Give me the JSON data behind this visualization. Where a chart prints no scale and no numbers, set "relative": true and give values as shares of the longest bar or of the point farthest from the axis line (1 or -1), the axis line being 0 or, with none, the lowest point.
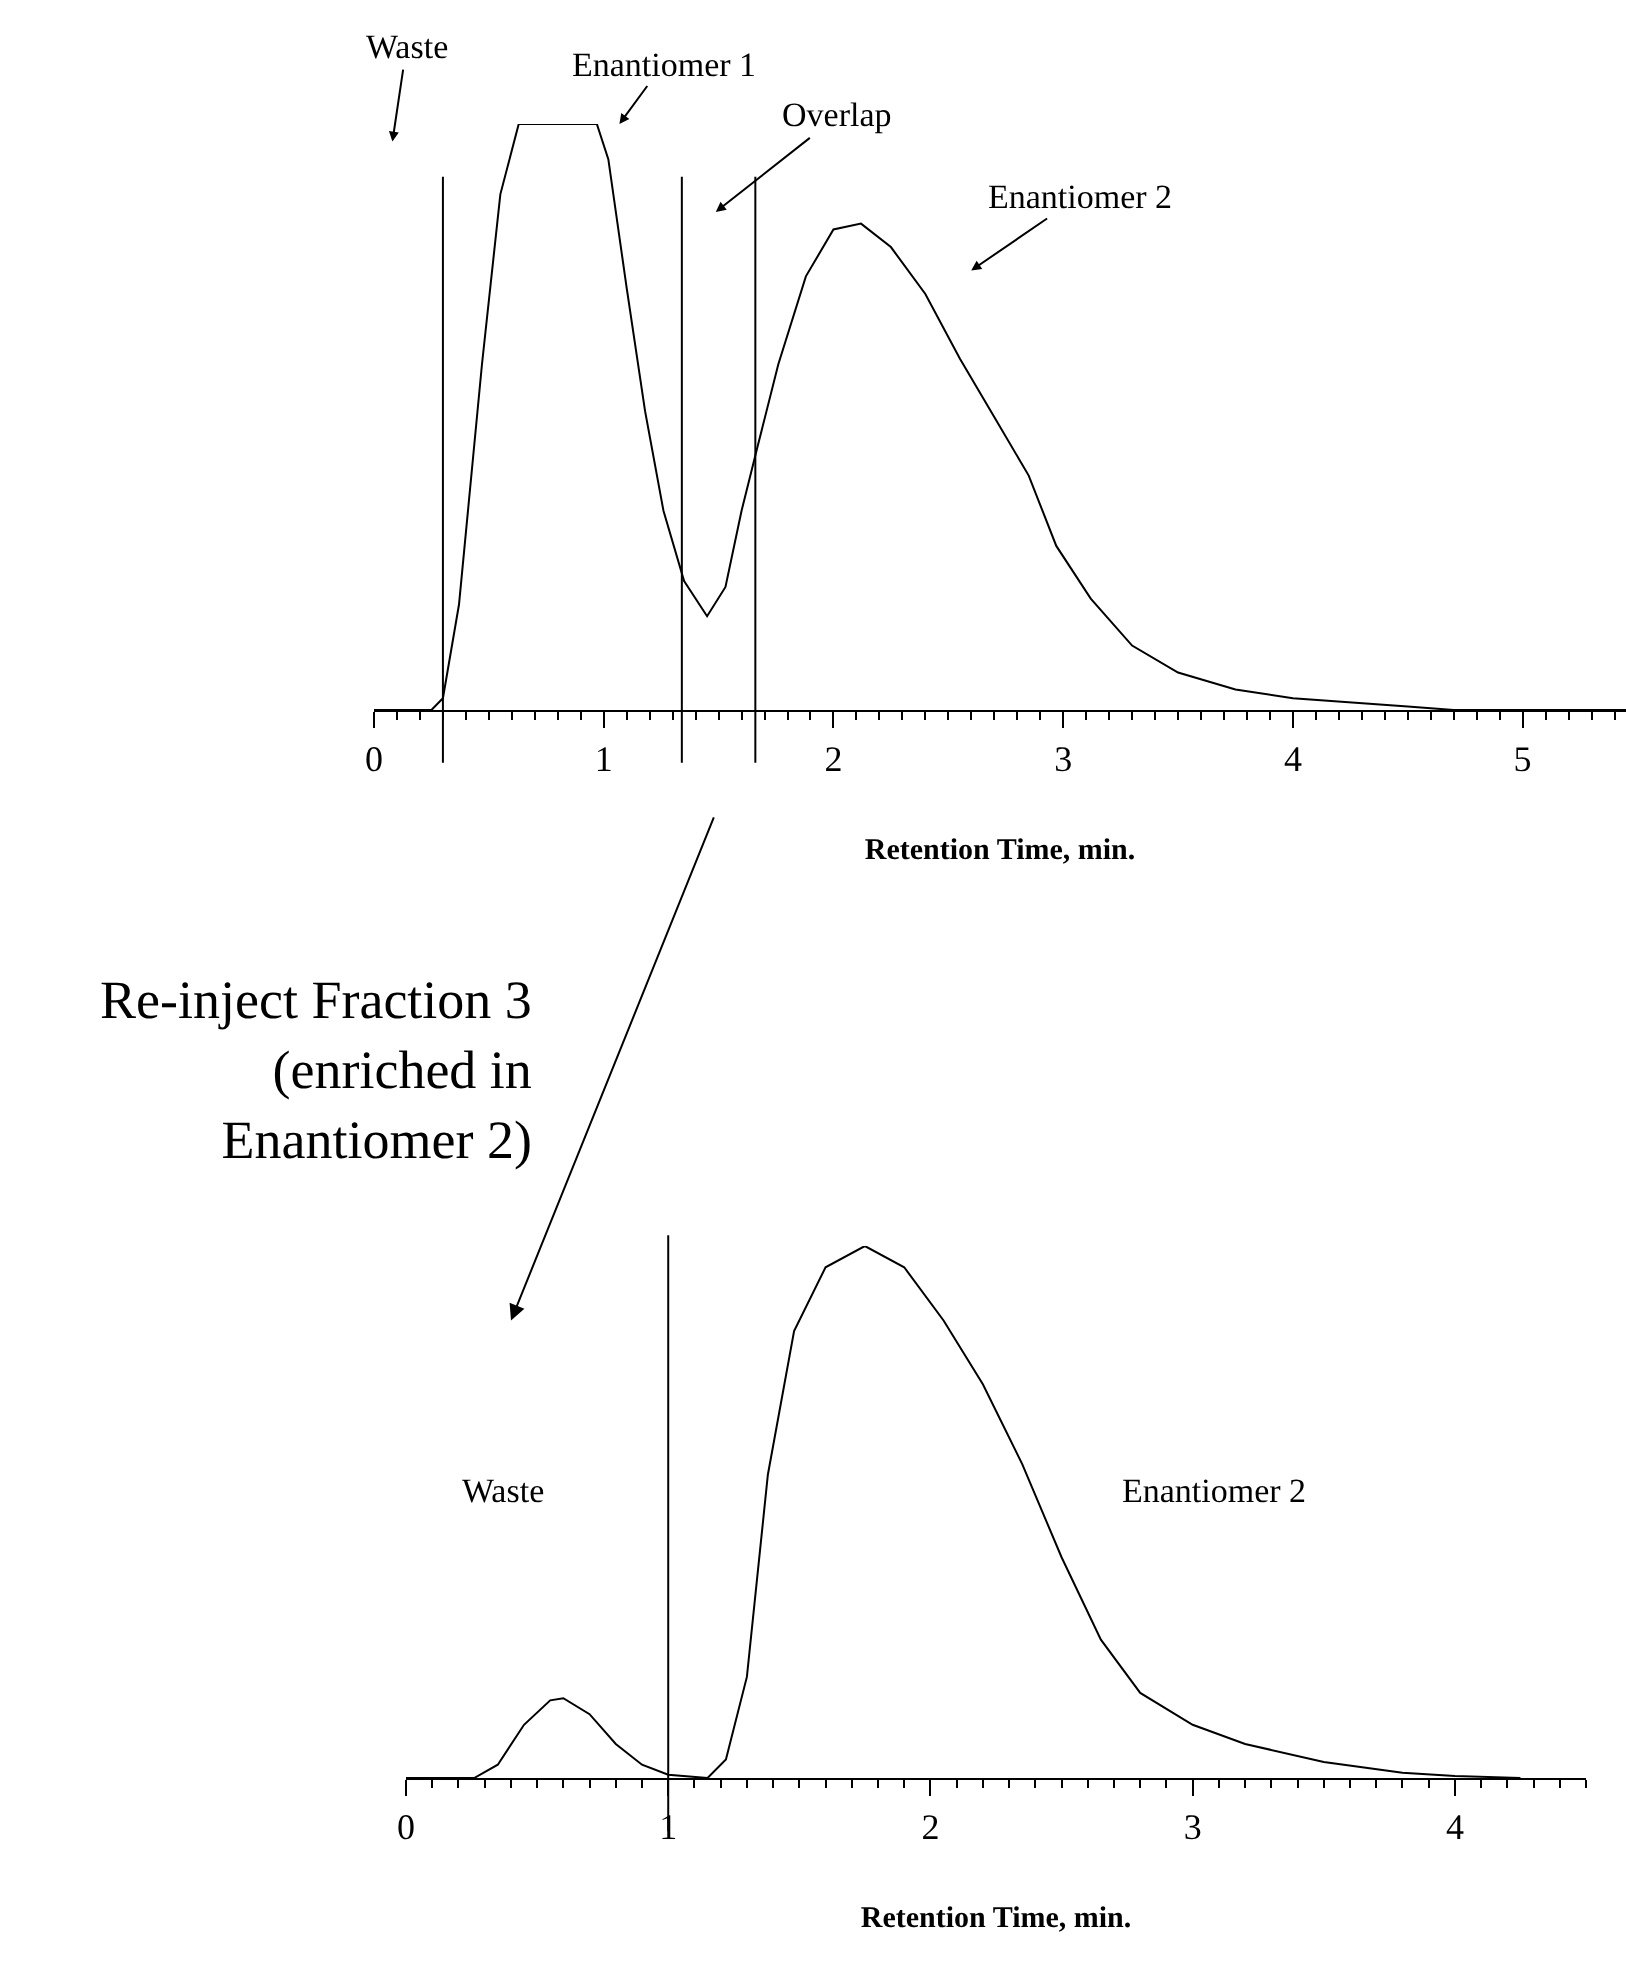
{
  "chart_data": [
    {
      "type": "line",
      "relative": true,
      "xlabel": "Retention Time, min.",
      "xlim": [
        0,
        5.45
      ],
      "xticks": [
        0,
        1,
        2,
        3,
        4,
        5
      ],
      "grid": false,
      "marker": "none",
      "line_style": "solid",
      "series": [
        {
          "color": "#000000",
          "x": [
            0,
            0.25,
            0.3,
            0.37,
            0.47,
            0.55,
            0.63,
            0.97,
            1.02,
            1.1,
            1.18,
            1.26,
            1.35,
            1.45,
            1.53,
            1.6,
            1.67,
            1.76,
            1.88,
            2.0,
            2.12,
            2.25,
            2.4,
            2.55,
            2.7,
            2.85,
            2.97,
            3.12,
            3.3,
            3.5,
            3.75,
            4.0,
            4.5,
            4.7,
            5.45
          ],
          "values": [
            0,
            0,
            0.02,
            0.18,
            0.59,
            0.88,
            1,
            1,
            0.94,
            0.72,
            0.51,
            0.34,
            0.22,
            0.16,
            0.21,
            0.34,
            0.45,
            0.59,
            0.74,
            0.82,
            0.83,
            0.79,
            0.71,
            0.6,
            0.5,
            0.4,
            0.28,
            0.19,
            0.11,
            0.064,
            0.035,
            0.02,
            0.006,
            0,
            0
          ]
        }
      ],
      "ref_lines": [
        {
          "axis": "x",
          "value": 0.3,
          "color": "#000000"
        },
        {
          "axis": "x",
          "value": 1.34,
          "color": "#000000"
        },
        {
          "axis": "x",
          "value": 1.66,
          "color": "#000000"
        }
      ],
      "annotations": [
        "Waste",
        "Enantiomer 1",
        "Overlap",
        "Enantiomer 2"
      ]
    },
    {
      "type": "line",
      "relative": true,
      "xlabel": "Retention Time, min.",
      "xlim": [
        0,
        4.5
      ],
      "xticks": [
        0,
        1,
        2,
        3,
        4
      ],
      "grid": false,
      "marker": "none",
      "line_style": "solid",
      "series": [
        {
          "color": "#000000",
          "x": [
            0,
            0.26,
            0.35,
            0.45,
            0.55,
            0.6,
            0.7,
            0.8,
            0.9,
            1.0,
            1.15,
            1.22,
            1.3,
            1.38,
            1.48,
            1.6,
            1.75,
            1.9,
            2.05,
            2.2,
            2.35,
            2.5,
            2.65,
            2.8,
            3.0,
            3.2,
            3.5,
            3.8,
            4.0,
            4.25
          ],
          "values": [
            0,
            0,
            0.025,
            0.1,
            0.146,
            0.15,
            0.12,
            0.064,
            0.025,
            0.006,
            0,
            0.035,
            0.19,
            0.57,
            0.84,
            0.96,
            1,
            0.96,
            0.86,
            0.74,
            0.59,
            0.415,
            0.26,
            0.16,
            0.1,
            0.064,
            0.03,
            0.01,
            0.004,
            0
          ]
        }
      ],
      "ref_lines": [
        {
          "axis": "x",
          "value": 1,
          "color": "#000000"
        }
      ],
      "annotations": [
        "Re-inject Fraction 3\n(enriched in\nEnantiomer 2)",
        "Waste",
        "Enantiomer 2"
      ]
    }
  ]
}
